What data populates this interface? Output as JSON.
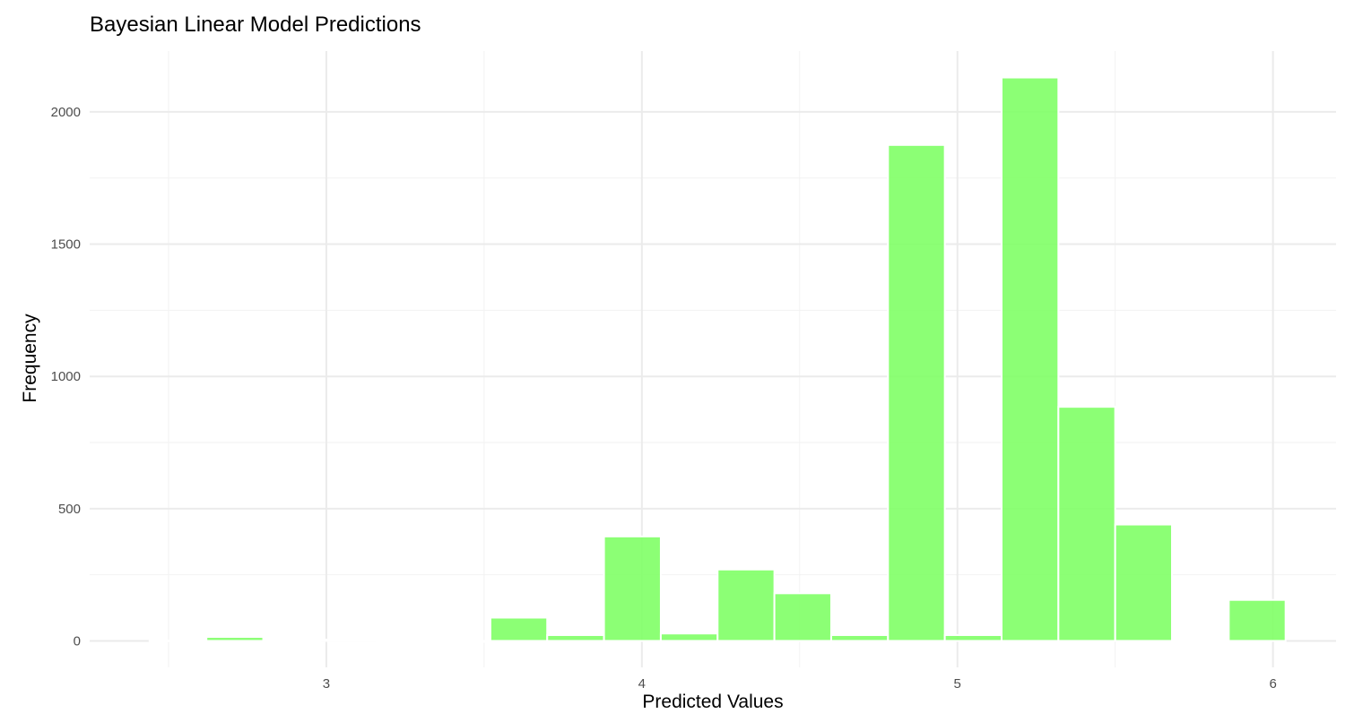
{
  "chart_data": {
    "type": "bar",
    "title": "Bayesian Linear Model Predictions",
    "xlabel": "Predicted Values",
    "ylabel": "Frequency",
    "x_ticks": [
      3,
      4,
      5,
      6
    ],
    "y_ticks": [
      0,
      500,
      1000,
      1500,
      2000
    ],
    "xlim": [
      2.25,
      6.2
    ],
    "ylim": [
      -100,
      2230
    ],
    "grid": true,
    "bar_color": "#80ff66",
    "bar_outline": "#ffffff",
    "bin_width": 0.18,
    "bins": [
      {
        "x": 2.53,
        "count": 2
      },
      {
        "x": 2.71,
        "count": 15
      },
      {
        "x": 2.89,
        "count": 0
      },
      {
        "x": 3.07,
        "count": 5
      },
      {
        "x": 3.25,
        "count": 0
      },
      {
        "x": 3.43,
        "count": 0
      },
      {
        "x": 3.61,
        "count": 88
      },
      {
        "x": 3.79,
        "count": 22
      },
      {
        "x": 3.97,
        "count": 395
      },
      {
        "x": 4.15,
        "count": 28
      },
      {
        "x": 4.33,
        "count": 270
      },
      {
        "x": 4.51,
        "count": 180
      },
      {
        "x": 4.69,
        "count": 22
      },
      {
        "x": 4.87,
        "count": 1875
      },
      {
        "x": 5.05,
        "count": 22
      },
      {
        "x": 5.23,
        "count": 2130
      },
      {
        "x": 5.41,
        "count": 885
      },
      {
        "x": 5.59,
        "count": 440
      },
      {
        "x": 5.77,
        "count": 0
      },
      {
        "x": 5.95,
        "count": 155
      }
    ]
  }
}
